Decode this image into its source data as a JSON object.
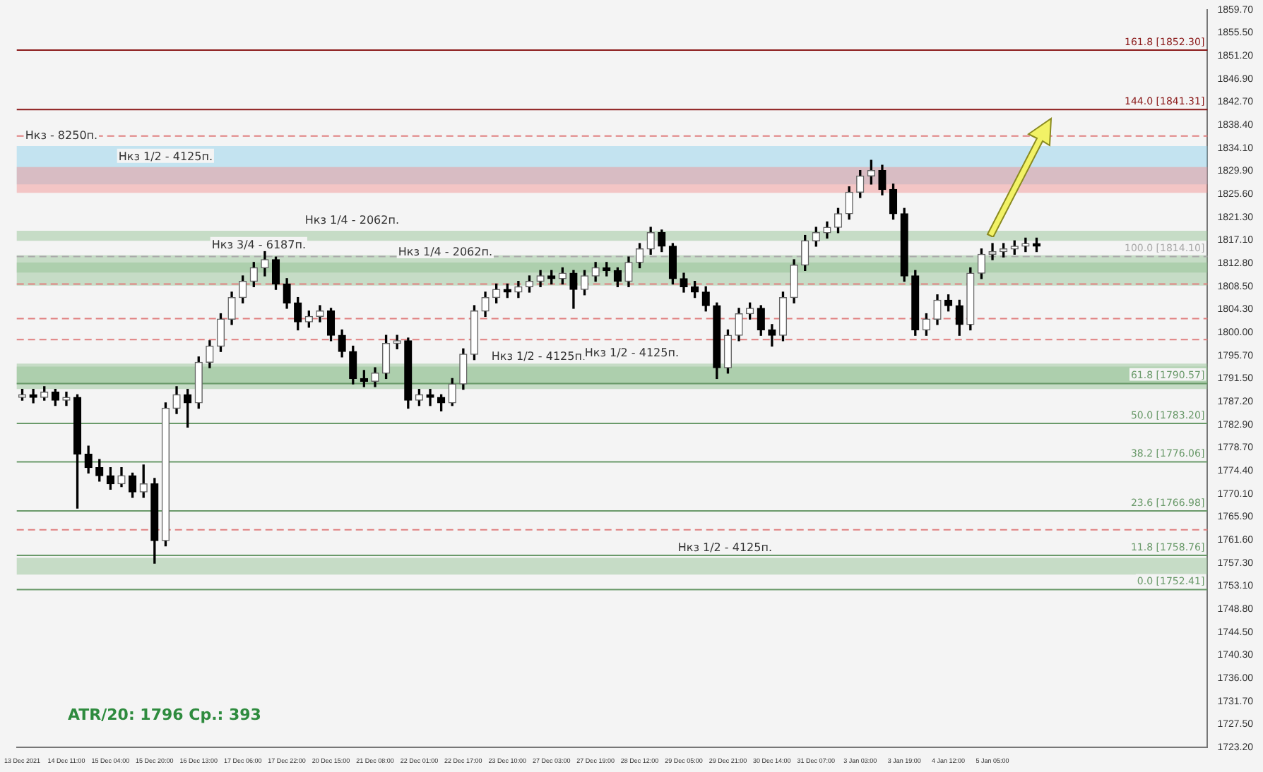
{
  "chart_data": {
    "type": "candlestick",
    "categories": [
      "13 Dec 2021",
      null,
      null,
      null,
      "14 Dec 11:00",
      null,
      null,
      null,
      "15 Dec 04:00",
      null,
      null,
      null,
      "15 Dec 20:00",
      null,
      null,
      null,
      "16 Dec 13:00",
      null,
      null,
      null,
      "17 Dec 06:00",
      null,
      null,
      null,
      "17 Dec 22:00",
      null,
      null,
      null,
      "20 Dec 15:00",
      null,
      null,
      null,
      "21 Dec 08:00",
      null,
      null,
      null,
      "22 Dec 01:00",
      null,
      null,
      null,
      "22 Dec 17:00",
      null,
      null,
      null,
      "23 Dec 10:00",
      null,
      null,
      null,
      "27 Dec 03:00",
      null,
      null,
      null,
      "27 Dec 19:00",
      null,
      null,
      null,
      "28 Dec 12:00",
      null,
      null,
      null,
      "29 Dec 05:00",
      null,
      null,
      null,
      "29 Dec 21:00",
      null,
      null,
      null,
      "30 Dec 14:00",
      null,
      null,
      null,
      "31 Dec 07:00",
      null,
      null,
      null,
      "3 Jan 03:00",
      null,
      null,
      null,
      "3 Jan 19:00",
      null,
      null,
      null,
      "4 Jan 12:00",
      null,
      null,
      null,
      "5 Jan 05:00",
      null,
      null,
      null,
      null,
      null,
      null,
      null,
      null,
      null,
      null,
      null,
      null,
      null,
      null,
      null,
      null,
      null,
      null,
      null
    ],
    "ohlc": [
      [
        1788.0,
        1789.5,
        1787.5,
        1788.5
      ],
      [
        1788.5,
        1789.5,
        1787.0,
        1788.0
      ],
      [
        1788.0,
        1790.0,
        1787.5,
        1789.0
      ],
      [
        1789.0,
        1789.5,
        1786.5,
        1787.5
      ],
      [
        1787.5,
        1789.0,
        1786.5,
        1788.0
      ],
      [
        1788.0,
        1788.5,
        1767.5,
        1777.5
      ],
      [
        1777.5,
        1779.0,
        1774.0,
        1775.0
      ],
      [
        1775.0,
        1776.5,
        1772.5,
        1773.5
      ],
      [
        1773.5,
        1775.0,
        1771.0,
        1772.0
      ],
      [
        1772.0,
        1775.0,
        1771.5,
        1773.5
      ],
      [
        1773.5,
        1774.0,
        1769.5,
        1770.5
      ],
      [
        1770.5,
        1775.5,
        1769.5,
        1772.0
      ],
      [
        1772.0,
        1773.0,
        1757.3,
        1761.5
      ],
      [
        1761.5,
        1787.0,
        1760.5,
        1786.0
      ],
      [
        1786.0,
        1790.0,
        1785.0,
        1788.5
      ],
      [
        1788.5,
        1789.5,
        1782.5,
        1787.0
      ],
      [
        1787.0,
        1795.5,
        1786.0,
        1794.5
      ],
      [
        1794.5,
        1798.5,
        1793.5,
        1797.5
      ],
      [
        1797.5,
        1803.5,
        1796.5,
        1802.5
      ],
      [
        1802.5,
        1807.5,
        1801.5,
        1806.5
      ],
      [
        1806.5,
        1810.5,
        1805.5,
        1809.5
      ],
      [
        1809.5,
        1813.0,
        1808.5,
        1812.0
      ],
      [
        1812.0,
        1815.0,
        1810.5,
        1813.5
      ],
      [
        1813.5,
        1814.0,
        1808.0,
        1809.0
      ],
      [
        1809.0,
        1810.0,
        1804.5,
        1805.5
      ],
      [
        1805.5,
        1806.5,
        1800.5,
        1802.0
      ],
      [
        1802.0,
        1804.0,
        1801.0,
        1803.0
      ],
      [
        1803.0,
        1805.0,
        1802.0,
        1804.0
      ],
      [
        1804.0,
        1804.5,
        1798.5,
        1799.5
      ],
      [
        1799.5,
        1800.5,
        1795.5,
        1796.5
      ],
      [
        1796.5,
        1797.5,
        1790.5,
        1791.5
      ],
      [
        1791.5,
        1793.0,
        1790.0,
        1791.0
      ],
      [
        1791.0,
        1793.5,
        1790.0,
        1792.5
      ],
      [
        1792.5,
        1799.5,
        1791.5,
        1798.0
      ],
      [
        1798.0,
        1799.5,
        1797.0,
        1798.5
      ],
      [
        1798.5,
        1799.0,
        1786.0,
        1787.5
      ],
      [
        1787.5,
        1789.5,
        1786.5,
        1788.5
      ],
      [
        1788.5,
        1789.5,
        1786.5,
        1788.0
      ],
      [
        1788.0,
        1788.5,
        1785.5,
        1787.0
      ],
      [
        1787.0,
        1791.5,
        1786.5,
        1790.5
      ],
      [
        1790.5,
        1797.0,
        1789.5,
        1796.0
      ],
      [
        1796.0,
        1805.0,
        1795.0,
        1804.0
      ],
      [
        1804.0,
        1807.5,
        1803.0,
        1806.5
      ],
      [
        1806.5,
        1809.0,
        1805.5,
        1808.0
      ],
      [
        1808.0,
        1809.0,
        1806.5,
        1807.5
      ],
      [
        1807.5,
        1809.5,
        1806.5,
        1808.5
      ],
      [
        1808.5,
        1810.5,
        1807.5,
        1809.5
      ],
      [
        1809.5,
        1811.5,
        1808.5,
        1810.5
      ],
      [
        1810.5,
        1811.5,
        1809.0,
        1810.0
      ],
      [
        1810.0,
        1812.0,
        1809.0,
        1811.0
      ],
      [
        1811.0,
        1811.5,
        1804.5,
        1808.0
      ],
      [
        1808.0,
        1811.5,
        1807.0,
        1810.5
      ],
      [
        1810.5,
        1813.0,
        1809.5,
        1812.0
      ],
      [
        1812.0,
        1813.0,
        1810.5,
        1811.5
      ],
      [
        1811.5,
        1812.0,
        1808.5,
        1809.5
      ],
      [
        1809.5,
        1814.0,
        1808.5,
        1813.0
      ],
      [
        1813.0,
        1816.5,
        1812.0,
        1815.5
      ],
      [
        1815.5,
        1819.5,
        1814.5,
        1818.5
      ],
      [
        1818.5,
        1819.0,
        1815.0,
        1816.0
      ],
      [
        1816.0,
        1816.5,
        1809.0,
        1810.0
      ],
      [
        1810.0,
        1811.0,
        1807.5,
        1808.5
      ],
      [
        1808.5,
        1809.5,
        1806.5,
        1807.5
      ],
      [
        1807.5,
        1808.5,
        1804.0,
        1805.0
      ],
      [
        1805.0,
        1805.5,
        1791.5,
        1793.5
      ],
      [
        1793.5,
        1800.5,
        1792.5,
        1799.5
      ],
      [
        1799.5,
        1804.5,
        1798.5,
        1803.5
      ],
      [
        1803.5,
        1805.5,
        1802.5,
        1804.5
      ],
      [
        1804.5,
        1805.0,
        1799.5,
        1800.5
      ],
      [
        1800.5,
        1801.5,
        1797.5,
        1799.5
      ],
      [
        1799.5,
        1807.5,
        1798.5,
        1806.5
      ],
      [
        1806.5,
        1813.5,
        1805.5,
        1812.5
      ],
      [
        1812.5,
        1818.0,
        1811.5,
        1817.0
      ],
      [
        1817.0,
        1819.5,
        1816.0,
        1818.5
      ],
      [
        1818.5,
        1820.5,
        1817.5,
        1819.5
      ],
      [
        1819.5,
        1823.0,
        1818.5,
        1822.0
      ],
      [
        1822.0,
        1827.0,
        1821.0,
        1826.0
      ],
      [
        1826.0,
        1830.0,
        1825.0,
        1829.0
      ],
      [
        1829.0,
        1831.9,
        1827.5,
        1830.0
      ],
      [
        1830.0,
        1831.0,
        1825.5,
        1826.5
      ],
      [
        1826.5,
        1827.5,
        1821.0,
        1822.0
      ],
      [
        1822.0,
        1823.0,
        1809.5,
        1810.5
      ],
      [
        1810.5,
        1811.5,
        1799.5,
        1800.5
      ],
      [
        1800.5,
        1803.5,
        1799.5,
        1802.5
      ],
      [
        1802.5,
        1807.0,
        1801.5,
        1806.0
      ],
      [
        1806.0,
        1807.0,
        1804.0,
        1805.0
      ],
      [
        1805.0,
        1806.0,
        1799.5,
        1801.5
      ],
      [
        1801.5,
        1812.0,
        1800.5,
        1811.0
      ],
      [
        1811.0,
        1815.5,
        1810.0,
        1814.5
      ],
      [
        1814.5,
        1816.5,
        1813.5,
        1815.0
      ],
      [
        1815.0,
        1816.5,
        1814.0,
        1815.5
      ],
      [
        1815.5,
        1817.0,
        1814.5,
        1816.0
      ],
      [
        1816.0,
        1817.5,
        1815.0,
        1816.5
      ],
      [
        1816.5,
        1817.5,
        1815.0,
        1816.0
      ],
      null,
      null,
      null,
      null,
      null,
      null,
      null,
      null,
      null,
      null,
      null,
      null,
      null,
      null,
      null
    ],
    "ylim": [
      1723.2,
      1859.7
    ],
    "yticks": [
      {
        "value": 1859.7,
        "label": "1859.70"
      },
      {
        "value": 1855.5,
        "label": "1855.50"
      },
      {
        "value": 1851.2,
        "label": "1851.20"
      },
      {
        "value": 1846.9,
        "label": "1846.90"
      },
      {
        "value": 1842.7,
        "label": "1842.70"
      },
      {
        "value": 1838.4,
        "label": "1838.40"
      },
      {
        "value": 1834.1,
        "label": "1834.10"
      },
      {
        "value": 1829.9,
        "label": "1829.90"
      },
      {
        "value": 1825.6,
        "label": "1825.60"
      },
      {
        "value": 1821.3,
        "label": "1821.30"
      },
      {
        "value": 1817.1,
        "label": "1817.10"
      },
      {
        "value": 1812.8,
        "label": "1812.80"
      },
      {
        "value": 1808.5,
        "label": "1808.50"
      },
      {
        "value": 1804.3,
        "label": "1804.30"
      },
      {
        "value": 1800,
        "label": "1800.00"
      },
      {
        "value": 1795.7,
        "label": "1795.70"
      },
      {
        "value": 1791.5,
        "label": "1791.50"
      },
      {
        "value": 1787.2,
        "label": "1787.20"
      },
      {
        "value": 1782.9,
        "label": "1782.90"
      },
      {
        "value": 1778.7,
        "label": "1778.70"
      },
      {
        "value": 1774.4,
        "label": "1774.40"
      },
      {
        "value": 1770.1,
        "label": "1770.10"
      },
      {
        "value": 1765.9,
        "label": "1765.90"
      },
      {
        "value": 1761.6,
        "label": "1761.60"
      },
      {
        "value": 1757.3,
        "label": "1757.30"
      },
      {
        "value": 1753.1,
        "label": "1753.10"
      },
      {
        "value": 1748.8,
        "label": "1748.80"
      },
      {
        "value": 1744.5,
        "label": "1744.50"
      },
      {
        "value": 1740.3,
        "label": "1740.30"
      },
      {
        "value": 1736,
        "label": "1736.00"
      },
      {
        "value": 1731.7,
        "label": "1731.70"
      },
      {
        "value": 1727.5,
        "label": "1727.50"
      },
      {
        "value": 1723.2,
        "label": "1723.20"
      }
    ],
    "bands": [
      {
        "axis": "y",
        "from": 1827.45,
        "to": 1834.55,
        "label": "Нкз - 8250п.",
        "color": "#87ceeb"
      },
      {
        "axis": "y",
        "from": 1825.89,
        "to": 1830.64,
        "label": "Нкз 1/2 - 4125п.",
        "color": "#f28b8b"
      },
      {
        "axis": "y",
        "from": 1808.7,
        "to": 1814.32,
        "label": "Нкз 3/4 - 6187п.",
        "color": "#8fbf8f"
      },
      {
        "axis": "y",
        "from": 1816.99,
        "to": 1818.86,
        "label": "Нкз 1/4 - 2062п.",
        "color": "#8fbf8f"
      },
      {
        "axis": "y",
        "from": 1811.12,
        "to": 1812.99,
        "label": "Нкз 1/4 - 2062п.",
        "color": "#8fbf8f"
      },
      {
        "axis": "y",
        "from": 1789.55,
        "to": 1793.7,
        "label": "Нкз 1/2 - 4125п.",
        "color": "#8fbf8f"
      },
      {
        "axis": "y",
        "from": 1790.4,
        "to": 1794.28,
        "label": "Нкз 1/2 - 4125п.",
        "color": "#8fbf8f"
      },
      {
        "axis": "y",
        "from": 1755.2,
        "to": 1758.3,
        "label": "Нкз 1/2 - 4125п.",
        "color": "#8fbf8f"
      }
    ],
    "ref_lines": [
      {
        "axis": "y",
        "value": 1852.3,
        "label": "161.8 [1852.30]",
        "color": "#8b1a1a",
        "line_style": "solid"
      },
      {
        "axis": "y",
        "value": 1841.31,
        "label": "144.0 [1841.31]",
        "color": "#8b1a1a",
        "line_style": "solid"
      },
      {
        "axis": "y",
        "value": 1814.1,
        "label": "100.0 [1814.10]",
        "color": "#aaaaaa",
        "line_style": "dashed"
      },
      {
        "axis": "y",
        "value": 1790.57,
        "label": "61.8 [1790.57]",
        "color": "#6a9a6a",
        "line_style": "solid"
      },
      {
        "axis": "y",
        "value": 1783.2,
        "label": "50.0 [1783.20]",
        "color": "#6a9a6a",
        "line_style": "solid"
      },
      {
        "axis": "y",
        "value": 1776.06,
        "label": "38.2 [1776.06]",
        "color": "#6a9a6a",
        "line_style": "solid"
      },
      {
        "axis": "y",
        "value": 1766.98,
        "label": "23.6 [1766.98]",
        "color": "#6a9a6a",
        "line_style": "solid"
      },
      {
        "axis": "y",
        "value": 1758.76,
        "label": "11.8 [1758.76]",
        "color": "#6a9a6a",
        "line_style": "solid"
      },
      {
        "axis": "y",
        "value": 1752.41,
        "label": "0.0 [1752.41]",
        "color": "#6a9a6a",
        "line_style": "solid"
      },
      {
        "axis": "y",
        "value": 1836.4,
        "color": "#e08080",
        "line_style": "dashed"
      },
      {
        "axis": "y",
        "value": 1809,
        "color": "#e08080",
        "line_style": "dashed"
      },
      {
        "axis": "y",
        "value": 1802.6,
        "color": "#e08080",
        "line_style": "dashed"
      },
      {
        "axis": "y",
        "value": 1798.7,
        "color": "#e08080",
        "line_style": "dashed"
      },
      {
        "axis": "y",
        "value": 1763.5,
        "color": "#e08080",
        "line_style": "dashed"
      }
    ],
    "annotations": [
      "ATR/20: 1796  Ср.: 393"
    ],
    "grid": false,
    "legend": false
  }
}
